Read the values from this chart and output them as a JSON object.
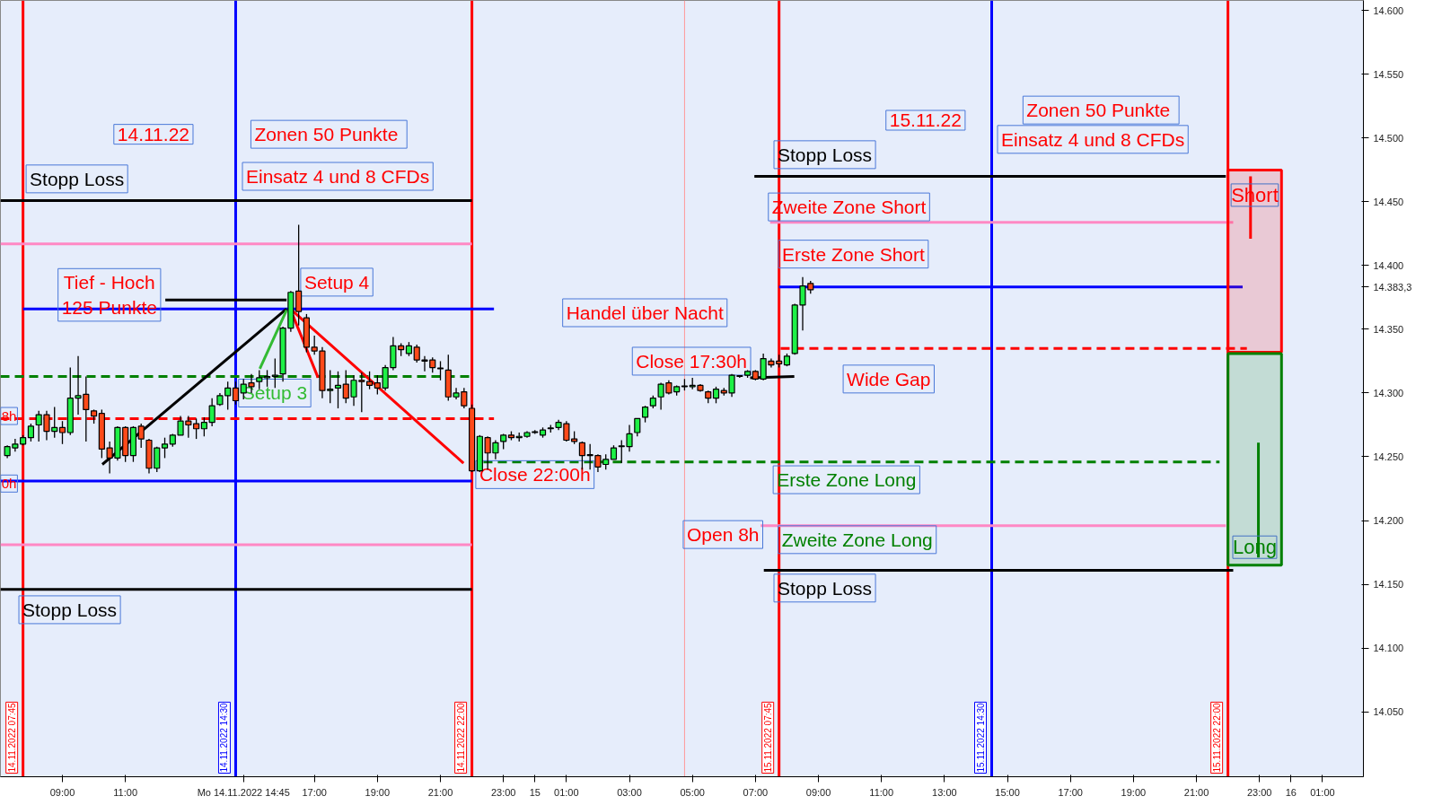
{
  "chart_data": {
    "type": "candlestick",
    "x": [
      "2022-11-14T07:15",
      "2022-11-14T07:30",
      "2022-11-14T07:45",
      "2022-11-14T08:00",
      "2022-11-14T08:15",
      "2022-11-14T08:30",
      "2022-11-14T08:45",
      "2022-11-14T09:00",
      "2022-11-14T09:15",
      "2022-11-14T09:30",
      "2022-11-14T09:45",
      "2022-11-14T10:00",
      "2022-11-14T10:15",
      "2022-11-14T10:30",
      "2022-11-14T10:45",
      "2022-11-14T11:00",
      "2022-11-14T11:15",
      "2022-11-14T11:30",
      "2022-11-14T11:45",
      "2022-11-14T12:00",
      "2022-11-14T12:15",
      "2022-11-14T12:30",
      "2022-11-14T12:45",
      "2022-11-14T13:00",
      "2022-11-14T13:15",
      "2022-11-14T13:30",
      "2022-11-14T13:45",
      "2022-11-14T14:00",
      "2022-11-14T14:15",
      "2022-11-14T14:30",
      "2022-11-14T14:45",
      "2022-11-14T15:00",
      "2022-11-14T15:15",
      "2022-11-14T15:30",
      "2022-11-14T15:45",
      "2022-11-14T16:00",
      "2022-11-14T16:15",
      "2022-11-14T16:30",
      "2022-11-14T16:45",
      "2022-11-14T17:00",
      "2022-11-14T17:15",
      "2022-11-14T17:30",
      "2022-11-14T17:45",
      "2022-11-14T18:00",
      "2022-11-14T18:15",
      "2022-11-14T18:30",
      "2022-11-14T18:45",
      "2022-11-14T19:00",
      "2022-11-14T19:15",
      "2022-11-14T19:30",
      "2022-11-14T19:45",
      "2022-11-14T20:00",
      "2022-11-14T20:15",
      "2022-11-14T20:30",
      "2022-11-14T20:45",
      "2022-11-14T21:00",
      "2022-11-14T21:15",
      "2022-11-14T21:30",
      "2022-11-14T21:45",
      "2022-11-14T22:00",
      "2022-11-14T22:15",
      "2022-11-14T22:30",
      "2022-11-14T22:45",
      "2022-11-14T23:00",
      "2022-11-14T23:15",
      "2022-11-14T23:30",
      "2022-11-14T23:45",
      "2022-11-15T00:00",
      "2022-11-15T00:15",
      "2022-11-15T00:30",
      "2022-11-15T00:45",
      "2022-11-15T01:00",
      "2022-11-15T01:15",
      "2022-11-15T01:30",
      "2022-11-15T01:45",
      "2022-11-15T02:00",
      "2022-11-15T02:15",
      "2022-11-15T02:30",
      "2022-11-15T02:45",
      "2022-11-15T03:00",
      "2022-11-15T03:15",
      "2022-11-15T03:30",
      "2022-11-15T03:45",
      "2022-11-15T04:00",
      "2022-11-15T04:15",
      "2022-11-15T04:30",
      "2022-11-15T04:45",
      "2022-11-15T05:00",
      "2022-11-15T05:15",
      "2022-11-15T05:30",
      "2022-11-15T05:45",
      "2022-11-15T06:00",
      "2022-11-15T06:15",
      "2022-11-15T06:30",
      "2022-11-15T06:45",
      "2022-11-15T07:00",
      "2022-11-15T07:15",
      "2022-11-15T07:30",
      "2022-11-15T07:45",
      "2022-11-15T08:00",
      "2022-11-15T08:15",
      "2022-11-15T08:30",
      "2022-11-15T08:45"
    ],
    "ohlc": [
      [
        14251,
        14259,
        14249,
        14258
      ],
      [
        14257,
        14264,
        14254,
        14260
      ],
      [
        14260,
        14267,
        14259,
        14265
      ],
      [
        14265,
        14276,
        14262,
        14274
      ],
      [
        14275,
        14286,
        14262,
        14283
      ],
      [
        14283,
        14286,
        14263,
        14270
      ],
      [
        14270,
        14289,
        14265,
        14273
      ],
      [
        14273,
        14278,
        14260,
        14269
      ],
      [
        14269,
        14320,
        14267,
        14296
      ],
      [
        14296,
        14329,
        14283,
        14298
      ],
      [
        14299,
        14313,
        14262,
        14287
      ],
      [
        14286,
        14287,
        14276,
        14282
      ],
      [
        14284,
        14287,
        14249,
        14256
      ],
      [
        14257,
        14262,
        14237,
        14249
      ],
      [
        14249,
        14274,
        14247,
        14273
      ],
      [
        14273,
        14274,
        14246,
        14251
      ],
      [
        14251,
        14274,
        14246,
        14273
      ],
      [
        14274,
        14276,
        14257,
        14264
      ],
      [
        14263,
        14264,
        14237,
        14241
      ],
      [
        14241,
        14258,
        14238,
        14257
      ],
      [
        14257,
        14265,
        14249,
        14260
      ],
      [
        14260,
        14268,
        14258,
        14267
      ],
      [
        14267,
        14282,
        14267,
        14278
      ],
      [
        14278,
        14282,
        14265,
        14275
      ],
      [
        14276,
        14280,
        14264,
        14272
      ],
      [
        14272,
        14281,
        14266,
        14277
      ],
      [
        14277,
        14296,
        14274,
        14290
      ],
      [
        14291,
        14300,
        14290,
        14298
      ],
      [
        14298,
        14309,
        14287,
        14304
      ],
      [
        14304,
        14309,
        14291,
        14294
      ],
      [
        14300,
        14311,
        14295,
        14307
      ],
      [
        14308,
        14315,
        14300,
        14305
      ],
      [
        14309,
        14318,
        14303,
        14312
      ],
      [
        14312,
        14318,
        14305,
        14313
      ],
      [
        14313,
        14327,
        14304,
        14314
      ],
      [
        14315,
        14352,
        14309,
        14351
      ],
      [
        14351,
        14380,
        14348,
        14379
      ],
      [
        14380,
        14432,
        14353,
        14364
      ],
      [
        14359,
        14362,
        14332,
        14336
      ],
      [
        14336,
        14345,
        14330,
        14333
      ],
      [
        14333,
        14336,
        14296,
        14302
      ],
      [
        14302,
        14318,
        14292,
        14303
      ],
      [
        14304,
        14317,
        14288,
        14306
      ],
      [
        14307,
        14318,
        14292,
        14296
      ],
      [
        14297,
        14314,
        14290,
        14310
      ],
      [
        14310,
        14316,
        14285,
        14309
      ],
      [
        14309,
        14317,
        14303,
        14306
      ],
      [
        14308,
        14314,
        14299,
        14304
      ],
      [
        14304,
        14322,
        14302,
        14320
      ],
      [
        14320,
        14344,
        14318,
        14337
      ],
      [
        14337,
        14339,
        14329,
        14334
      ],
      [
        14331,
        14340,
        14329,
        14337
      ],
      [
        14336,
        14338,
        14324,
        14326
      ],
      [
        14326,
        14329,
        14317,
        14325
      ],
      [
        14326,
        14328,
        14316,
        14320
      ],
      [
        14319,
        14325,
        14310,
        14319
      ],
      [
        14318,
        14330,
        14294,
        14297
      ],
      [
        14297,
        14304,
        14295,
        14300
      ],
      [
        14301,
        14304,
        14288,
        14290
      ],
      [
        14288,
        14291,
        14238,
        14239
      ],
      [
        14239,
        14267,
        14238,
        14266
      ],
      [
        14265,
        14266,
        14240,
        14253
      ],
      [
        14253,
        14263,
        14248,
        14261
      ],
      [
        14262,
        14268,
        14256,
        14267
      ],
      [
        14267,
        14270,
        14263,
        14265
      ],
      [
        14265,
        14269,
        14262,
        14266
      ],
      [
        14266,
        14270,
        14265,
        14269
      ],
      [
        14269,
        14271,
        14268,
        14269
      ],
      [
        14267,
        14273,
        14265,
        14271
      ],
      [
        14272,
        14275,
        14269,
        14272
      ],
      [
        14273,
        14279,
        14271,
        14277
      ],
      [
        14276,
        14278,
        14262,
        14263
      ],
      [
        14264,
        14270,
        14260,
        14262
      ],
      [
        14261,
        14262,
        14240,
        14251
      ],
      [
        14251,
        14260,
        14240,
        14251
      ],
      [
        14251,
        14252,
        14238,
        14242
      ],
      [
        14244,
        14252,
        14240,
        14248
      ],
      [
        14248,
        14259,
        14248,
        14257
      ],
      [
        14258,
        14263,
        14245,
        14258
      ],
      [
        14258,
        14275,
        14254,
        14268
      ],
      [
        14269,
        14280,
        14266,
        14280
      ],
      [
        14281,
        14290,
        14277,
        14289
      ],
      [
        14290,
        14298,
        14288,
        14296
      ],
      [
        14297,
        14308,
        14287,
        14307
      ],
      [
        14308,
        14310,
        14299,
        14300
      ],
      [
        14301,
        14306,
        14298,
        14305
      ],
      [
        14305,
        14311,
        14302,
        14305
      ],
      [
        14305,
        14312,
        14303,
        14306
      ],
      [
        14306,
        14307,
        14301,
        14302
      ],
      [
        14301,
        14302,
        14292,
        14296
      ],
      [
        14296,
        14305,
        14292,
        14303
      ],
      [
        14302,
        14304,
        14298,
        14300
      ],
      [
        14300,
        14315,
        14297,
        14314
      ],
      [
        14313,
        14314,
        14312,
        14313
      ],
      [
        14314,
        14318,
        14312,
        14317
      ],
      [
        14317,
        14318,
        14310,
        14311
      ],
      [
        14311,
        14331,
        14310,
        14327
      ],
      [
        14325,
        14327,
        14320,
        14322
      ],
      [
        14325,
        14330,
        14320,
        14323
      ],
      [
        14322,
        14331,
        14321,
        14329
      ],
      [
        14331,
        14370,
        14330,
        14369
      ],
      [
        14369,
        14391,
        14349,
        14384
      ],
      [
        14386,
        14388,
        14378,
        14381
      ]
    ],
    "colors": [
      "#1ef046",
      "#1ef046",
      "#1ef046",
      "#1ef046",
      "#1ef046",
      "#ff4a1a",
      "#1ef046",
      "#ff4a1a",
      "#1ef046",
      "#1ef046",
      "#ff4a1a",
      "#ff4a1a",
      "#ff4a1a",
      "#ff4a1a",
      "#1ef046",
      "#ff4a1a",
      "#1ef046",
      "#ff4a1a",
      "#ff4a1a",
      "#1ef046",
      "#1ef046",
      "#1ef046",
      "#1ef046",
      "#ff4a1a",
      "#ff4a1a",
      "#1ef046",
      "#1ef046",
      "#1ef046",
      "#1ef046",
      "#ff4a1a",
      "#1ef046",
      "#ff4a1a",
      "#1ef046",
      "#1ef046",
      "#1ef046",
      "#1ef046",
      "#1ef046",
      "#ff4a1a",
      "#ff4a1a",
      "#ff4a1a",
      "#ff4a1a",
      "#1ef046",
      "#1ef046",
      "#ff4a1a",
      "#1ef046",
      "#ff4a1a",
      "#ff4a1a",
      "#ff4a1a",
      "#1ef046",
      "#1ef046",
      "#ff4a1a",
      "#1ef046",
      "#ff4a1a",
      "#ff4a1a",
      "#ff4a1a",
      "#1ef046",
      "#ff4a1a",
      "#1ef046",
      "#ff4a1a",
      "#ff4a1a",
      "#1ef046",
      "#ff4a1a",
      "#1ef046",
      "#1ef046",
      "#ff4a1a",
      "#1ef046",
      "#1ef046",
      "#1ef046",
      "#1ef046",
      "#1ef046",
      "#1ef046",
      "#ff4a1a",
      "#ff4a1a",
      "#ff4a1a",
      "#1ef046",
      "#ff4a1a",
      "#1ef046",
      "#1ef046",
      "#1ef046",
      "#1ef046",
      "#1ef046",
      "#1ef046",
      "#1ef046",
      "#1ef046",
      "#ff4a1a",
      "#1ef046",
      "#1ef046",
      "#1ef046",
      "#ff4a1a",
      "#ff4a1a",
      "#1ef046",
      "#ff4a1a",
      "#1ef046",
      "#1ef046",
      "#1ef046",
      "#ff4a1a",
      "#1ef046",
      "#ff4a1a",
      "#ff4a1a",
      "#1ef046",
      "#1ef046",
      "#1ef046",
      "#ff4a1a"
    ],
    "series": [
      {
        "type": "line",
        "x": [
          "2022-11-14T07:02",
          "2022-11-14T22:00"
        ],
        "values": [
          14451,
          14451
        ],
        "color": "#000000",
        "line_style": "solid"
      },
      {
        "type": "line",
        "x": [
          "2022-11-14T07:02",
          "2022-11-14T22:00"
        ],
        "values": [
          14417,
          14417
        ],
        "color": "#ff88c4",
        "line_style": "solid"
      },
      {
        "type": "line",
        "x": [
          "2022-11-14T07:45",
          "2022-11-14T22:42"
        ],
        "values": [
          14366,
          14366
        ],
        "color": "#0000ff",
        "line_style": "solid"
      },
      {
        "type": "line",
        "x": [
          "2022-11-14T07:02",
          "2022-11-14T22:00"
        ],
        "values": [
          14313,
          14313
        ],
        "color": "#008000",
        "line_style": "dashed"
      },
      {
        "type": "line",
        "x": [
          "2022-11-14T07:02",
          "2022-11-14T22:42"
        ],
        "values": [
          14280,
          14280
        ],
        "color": "#ff0000",
        "line_style": "dashed"
      },
      {
        "type": "line",
        "x": [
          "2022-11-14T07:02",
          "2022-11-14T22:00"
        ],
        "values": [
          14231,
          14231
        ],
        "color": "#0000ff",
        "line_style": "solid"
      },
      {
        "type": "line",
        "x": [
          "2022-11-14T07:02",
          "2022-11-14T22:00"
        ],
        "values": [
          14181,
          14181
        ],
        "color": "#ff88c4",
        "line_style": "solid"
      },
      {
        "type": "line",
        "x": [
          "2022-11-14T07:02",
          "2022-11-14T22:00"
        ],
        "values": [
          14146,
          14146
        ],
        "color": "#000000",
        "line_style": "solid"
      },
      {
        "type": "line",
        "x": [
          "2022-11-15T06:58",
          "2022-11-15T21:56"
        ],
        "values": [
          14470,
          14470
        ],
        "color": "#000000",
        "line_style": "solid"
      },
      {
        "type": "line",
        "x": [
          "2022-11-15T07:28",
          "2022-11-15T22:10"
        ],
        "values": [
          14434,
          14434
        ],
        "color": "#ff88c4",
        "line_style": "solid"
      },
      {
        "type": "line",
        "x": [
          "2022-11-15T07:45",
          "2022-11-15T22:28"
        ],
        "values": [
          14383.3,
          14383.3
        ],
        "color": "#0000ff",
        "line_style": "solid"
      },
      {
        "type": "line",
        "x": [
          "2022-11-15T07:48",
          "2022-11-15T22:36"
        ],
        "values": [
          14335,
          14335
        ],
        "color": "#ff0000",
        "line_style": "dashed"
      },
      {
        "type": "line",
        "x": [
          "2022-11-14T22:22",
          "2022-11-15T21:44"
        ],
        "values": [
          14246,
          14246
        ],
        "color": "#008000",
        "line_style": "dashed"
      },
      {
        "type": "line",
        "x": [
          "2022-11-15T07:10",
          "2022-11-15T21:56"
        ],
        "values": [
          14196,
          14196
        ],
        "color": "#ff88c4",
        "line_style": "solid"
      },
      {
        "type": "line",
        "x": [
          "2022-11-15T07:16",
          "2022-11-15T22:10"
        ],
        "values": [
          14161,
          14161
        ],
        "color": "#000000",
        "line_style": "solid"
      },
      {
        "type": "line",
        "x": [
          "2022-11-14T10:16",
          "2022-11-14T16:07"
        ],
        "values": [
          14244,
          14366
        ],
        "color": "#000000",
        "line_style": "solid"
      },
      {
        "type": "line",
        "x": [
          "2022-11-14T16:07",
          "2022-11-14T12:16"
        ],
        "values": [
          14373,
          14373
        ],
        "color": "#000000",
        "line_style": "solid"
      },
      {
        "type": "line",
        "x": [
          "2022-11-14T16:14",
          "2022-11-14T21:44"
        ],
        "values": [
          14366,
          14245
        ],
        "color": "#ff0000",
        "line_style": "solid"
      },
      {
        "type": "line",
        "x": [
          "2022-11-14T15:16",
          "2022-11-14T16:07"
        ],
        "values": [
          14319,
          14365
        ],
        "color": "#33bb33",
        "line_style": "solid"
      },
      {
        "type": "line",
        "x": [
          "2022-11-14T16:19",
          "2022-11-14T17:07"
        ],
        "values": [
          14361,
          14312
        ],
        "color": "#ff0000",
        "line_style": "solid"
      },
      {
        "type": "line",
        "x": [
          "2022-11-15T08:14",
          "2022-11-15T06:50"
        ],
        "values": [
          14313,
          14312
        ],
        "color": "#000000",
        "line_style": "solid"
      },
      {
        "type": "bar",
        "name": "Short",
        "x": [
          "2022-11-15T22:51"
        ],
        "base": [
          14332
        ],
        "values": [
          143
        ],
        "color": "#ff0000"
      },
      {
        "type": "bar",
        "name": "Long",
        "x": [
          "2022-11-15T22:51"
        ],
        "base": [
          14165
        ],
        "values": [
          166
        ],
        "color": "#008000"
      },
      {
        "type": "line",
        "x": [
          "2022-11-15T22:43",
          "2022-11-15T22:43"
        ],
        "values": [
          14470,
          14421
        ],
        "color": "#ff0000",
        "line_style": "solid"
      },
      {
        "type": "line",
        "x": [
          "2022-11-15T22:58",
          "2022-11-15T22:58"
        ],
        "values": [
          14171,
          14261
        ],
        "color": "#008000",
        "line_style": "solid"
      }
    ],
    "ref_lines": [
      {
        "axis": "x",
        "value": "2022-11-14T07:45",
        "label": "14.11.2022 07:45",
        "color": "#ff0000"
      },
      {
        "axis": "x",
        "value": "2022-11-14T14:30",
        "label": "14.11.2022 14:30",
        "color": "#0000ff"
      },
      {
        "axis": "x",
        "value": "2022-11-14T22:00",
        "label": "14.11.2022 22:00",
        "color": "#ff0000"
      },
      {
        "axis": "x",
        "value": "2022-11-15T04:45",
        "label": null,
        "color": "#ff9999"
      },
      {
        "axis": "x",
        "value": "2022-11-15T07:45",
        "label": "15.11.2022 07:45",
        "color": "#ff0000"
      },
      {
        "axis": "x",
        "value": "2022-11-15T14:30",
        "label": "15.11.2022 14:30",
        "color": "#0000ff"
      },
      {
        "axis": "x",
        "value": "2022-11-15T22:00",
        "label": "15.11.2022 22:00",
        "color": "#ff0000"
      }
    ],
    "annotations": [
      "14.11.22",
      "Zonen 50  Punkte",
      "Einsatz 4 und 8 CFDs",
      "Stopp Loss",
      "Tief - Hoch\n125 Punkte",
      "Setup 4",
      "Setup 3",
      "8h",
      "0h",
      "Stopp Loss",
      "Handel über Nacht",
      "Close 17:30h",
      "Close 22:00h",
      "Open 8h",
      "15.11.22",
      "Zonen 50  Punkte",
      "Einsatz 4 und 8 CFDs",
      "Stopp Loss",
      "Zweite Zone Short",
      "Erste Zone Short",
      "Wide Gap",
      "Erste Zone Long",
      "Zweite Zone Long",
      "Stopp Loss"
    ],
    "xlim": [
      "2022-11-14T07:02",
      "2022-11-16T02:18"
    ],
    "ylim": [
      13999,
      14608
    ],
    "xticks": [
      {
        "value": "2022-11-14T09:00",
        "label": "09:00"
      },
      {
        "value": "2022-11-14T11:00",
        "label": "11:00"
      },
      {
        "value": "2022-11-14T14:45",
        "label": "Mo 14.11.2022 14:45"
      },
      {
        "value": "2022-11-14T17:00",
        "label": "17:00"
      },
      {
        "value": "2022-11-14T19:00",
        "label": "19:00"
      },
      {
        "value": "2022-11-14T21:00",
        "label": "21:00"
      },
      {
        "value": "2022-11-14T23:00",
        "label": "23:00"
      },
      {
        "value": "2022-11-15T00:00",
        "label": "15"
      },
      {
        "value": "2022-11-15T01:00",
        "label": "01:00"
      },
      {
        "value": "2022-11-15T03:00",
        "label": "03:00"
      },
      {
        "value": "2022-11-15T05:00",
        "label": "05:00"
      },
      {
        "value": "2022-11-15T07:00",
        "label": "07:00"
      },
      {
        "value": "2022-11-15T09:00",
        "label": "09:00"
      },
      {
        "value": "2022-11-15T11:00",
        "label": "11:00"
      },
      {
        "value": "2022-11-15T13:00",
        "label": "13:00"
      },
      {
        "value": "2022-11-15T15:00",
        "label": "15:00"
      },
      {
        "value": "2022-11-15T17:00",
        "label": "17:00"
      },
      {
        "value": "2022-11-15T19:00",
        "label": "19:00"
      },
      {
        "value": "2022-11-15T21:00",
        "label": "21:00"
      },
      {
        "value": "2022-11-15T23:00",
        "label": "23:00"
      },
      {
        "value": "2022-11-16T00:00",
        "label": "16"
      },
      {
        "value": "2022-11-16T01:00",
        "label": "01:00"
      }
    ],
    "yticks": [
      {
        "value": 14050,
        "label": "14.050"
      },
      {
        "value": 14100,
        "label": "14.100"
      },
      {
        "value": 14150,
        "label": "14.150"
      },
      {
        "value": 14200,
        "label": "14.200"
      },
      {
        "value": 14250,
        "label": "14.250"
      },
      {
        "value": 14300,
        "label": "14.300"
      },
      {
        "value": 14350,
        "label": "14.350"
      },
      {
        "value": 14383.3,
        "label": "14.383,3"
      },
      {
        "value": 14400,
        "label": "14.400"
      },
      {
        "value": 14450,
        "label": "14.450"
      },
      {
        "value": 14500,
        "label": "14.500"
      },
      {
        "value": 14550,
        "label": "14.550"
      },
      {
        "value": 14600,
        "label": "14.600"
      }
    ]
  }
}
